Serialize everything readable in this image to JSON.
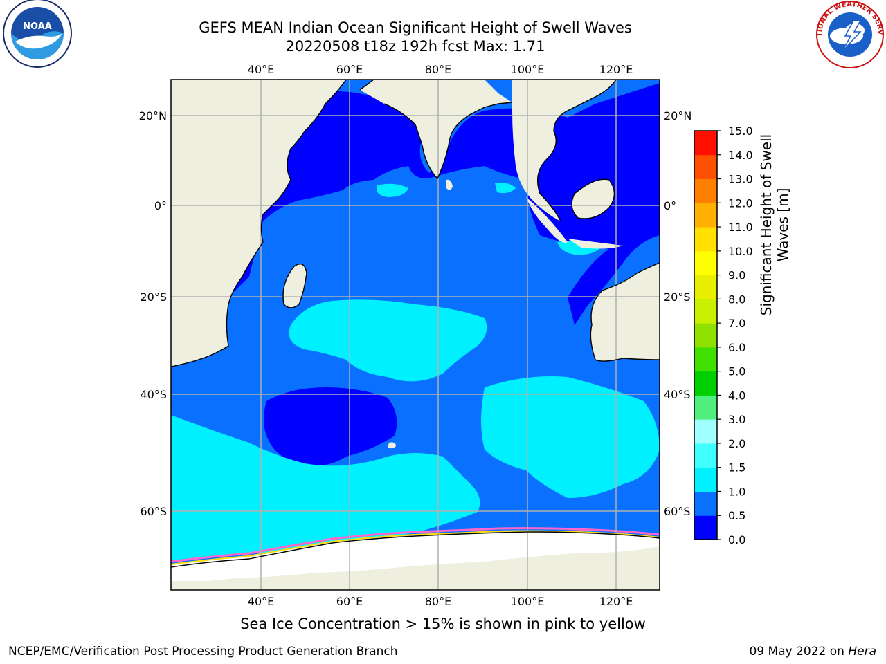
{
  "title_line1": "GEFS MEAN Indian Ocean Significant Height of Swell Waves",
  "title_line2": "20220508 t18z 192h fcst   Max: 1.71",
  "map": {
    "lon_ticks": [
      "40°E",
      "60°E",
      "80°E",
      "100°E",
      "120°E"
    ],
    "lat_ticks": [
      "20°N",
      "0°",
      "20°S",
      "40°S",
      "60°S"
    ],
    "colors": {
      "land": "#efefdf",
      "sea_ice": "#ffffff",
      "gridlines": "#b0b0b0",
      "coast": "#000000"
    }
  },
  "colorbar": {
    "label_line1": "Significant Height of Swell",
    "label_line2": "Waves [m]",
    "ticks": [
      "0.0",
      "0.5",
      "1.0",
      "1.5",
      "2.0",
      "3.0",
      "4.0",
      "5.0",
      "6.0",
      "7.0",
      "8.0",
      "9.0",
      "10.0",
      "11.0",
      "12.0",
      "13.0",
      "14.0",
      "15.0"
    ],
    "colors": [
      "#0000ff",
      "#0a70ff",
      "#00f0ff",
      "#40ffff",
      "#a0ffff",
      "#50f080",
      "#00d000",
      "#40e000",
      "#90e000",
      "#c8f000",
      "#e8f000",
      "#ffff00",
      "#ffe000",
      "#ffb000",
      "#ff8000",
      "#ff5000",
      "#ff1000"
    ]
  },
  "field_colors": {
    "band_0_0_5": "#0000ff",
    "band_0_5_1_0": "#0a70ff",
    "band_1_0_1_5": "#00f0ff",
    "ice_edge": [
      "#ff66cc",
      "#ffaa33",
      "#ffdd00"
    ]
  },
  "note": "Sea Ice Concentration > 15% is shown in pink to yellow",
  "footer_left": "NCEP/EMC/Verification Post Processing Product Generation Branch",
  "footer_right_prefix": "09 May 2022 on",
  "footer_right_host": "Hera",
  "logos": {
    "noaa_text": "NOAA",
    "nws_text": "NATIONAL WEATHER SERVICE"
  }
}
